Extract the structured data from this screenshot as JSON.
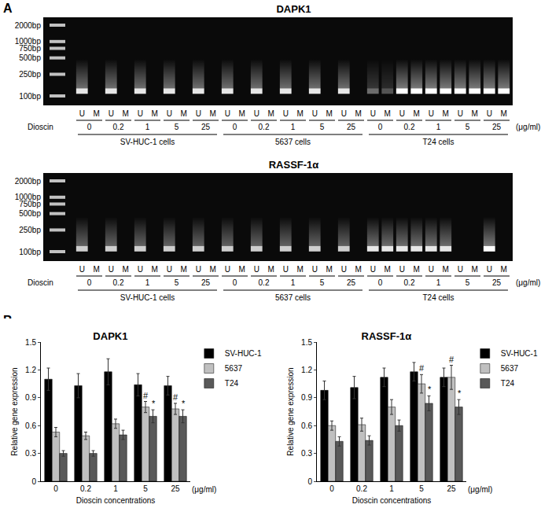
{
  "panel_a": {
    "label": "A",
    "row_label": "Dioscin",
    "lane_labels": [
      "U",
      "M"
    ],
    "concentrations": [
      "0",
      "0.2",
      "1",
      "5",
      "25"
    ],
    "unit": "(μg/ml)",
    "cell_lines": [
      "SV-HUC-1 cells",
      "5637 cells",
      "T24 cells"
    ],
    "ladder": [
      {
        "value": 2000,
        "label": "2000bp"
      },
      {
        "value": 1000,
        "label": "1000bp"
      },
      {
        "value": 750,
        "label": "750bp"
      },
      {
        "value": 500,
        "label": "500bp"
      },
      {
        "value": 250,
        "label": "250bp"
      },
      {
        "value": 100,
        "label": "100bp"
      }
    ],
    "gels": [
      {
        "title": "DAPK1",
        "band_bp": 125,
        "bands": [
          [
            [
              0.9,
              0
            ],
            [
              0.9,
              0
            ],
            [
              0.9,
              0
            ],
            [
              0.9,
              0
            ],
            [
              0.9,
              0
            ]
          ],
          [
            [
              0.9,
              0
            ],
            [
              0.9,
              0
            ],
            [
              0.9,
              0
            ],
            [
              0.9,
              0
            ],
            [
              0.9,
              0
            ]
          ],
          [
            [
              0.4,
              0.3
            ],
            [
              1,
              1
            ],
            [
              1,
              1
            ],
            [
              1,
              1
            ],
            [
              1,
              1
            ]
          ]
        ]
      },
      {
        "title": "RASSF-1α",
        "band_bp": 115,
        "bands": [
          [
            [
              0.8,
              0
            ],
            [
              0.8,
              0
            ],
            [
              0.8,
              0
            ],
            [
              0.8,
              0
            ],
            [
              0.8,
              0
            ]
          ],
          [
            [
              0.8,
              0
            ],
            [
              0.8,
              0
            ],
            [
              0.8,
              0
            ],
            [
              0.8,
              0
            ],
            [
              0.8,
              0
            ]
          ],
          [
            [
              0.9,
              0.9
            ],
            [
              0.9,
              0.9
            ],
            [
              0.9,
              0.9
            ],
            [
              0,
              0
            ],
            [
              1,
              0
            ]
          ]
        ]
      }
    ]
  },
  "panel_b": {
    "label": "B"
  },
  "chart_data": [
    {
      "type": "bar",
      "title": "DAPK1",
      "categories": [
        "0",
        "0.2",
        "1",
        "5",
        "25"
      ],
      "xlabel": "Dioscin concentrations",
      "unit_label": "(μg/ml)",
      "ylabel": "Relative gene expression",
      "ylim": [
        0,
        1.5
      ],
      "yticks": [
        0,
        0.3,
        0.6,
        0.9,
        1.2,
        1.5
      ],
      "grid": false,
      "legend": "top right",
      "series": [
        {
          "name": "SV-HUC-1",
          "color": "#000000",
          "values": [
            1.1,
            1.03,
            1.18,
            1.04,
            1.03
          ],
          "errors": [
            0.12,
            0.13,
            0.14,
            0.12,
            0.1
          ],
          "marks": [
            null,
            null,
            null,
            null,
            null
          ]
        },
        {
          "name": "5637",
          "color": "#c0c0c0",
          "values": [
            0.53,
            0.49,
            0.62,
            0.8,
            0.78
          ],
          "errors": [
            0.05,
            0.04,
            0.05,
            0.06,
            0.06
          ],
          "marks": [
            null,
            null,
            null,
            "#",
            "#"
          ]
        },
        {
          "name": "T24",
          "color": "#595959",
          "values": [
            0.3,
            0.3,
            0.5,
            0.7,
            0.7
          ],
          "errors": [
            0.03,
            0.03,
            0.05,
            0.07,
            0.07
          ],
          "marks": [
            null,
            null,
            null,
            "*",
            "*"
          ]
        }
      ]
    },
    {
      "type": "bar",
      "title": "RASSF-1α",
      "categories": [
        "0",
        "0.2",
        "1",
        "5",
        "25"
      ],
      "xlabel": "Dioscin concentrations",
      "unit_label": "(μg/ml)",
      "ylabel": "Relative gene expression",
      "ylim": [
        0,
        1.5
      ],
      "yticks": [
        0,
        0.3,
        0.6,
        0.9,
        1.2,
        1.5
      ],
      "grid": false,
      "legend": "top right",
      "series": [
        {
          "name": "SV-HUC-1",
          "color": "#000000",
          "values": [
            0.98,
            1.01,
            1.12,
            1.18,
            1.12
          ],
          "errors": [
            0.1,
            0.12,
            0.1,
            0.1,
            0.1
          ],
          "marks": [
            null,
            null,
            null,
            null,
            null
          ]
        },
        {
          "name": "5637",
          "color": "#c0c0c0",
          "values": [
            0.6,
            0.61,
            0.8,
            1.05,
            1.12
          ],
          "errors": [
            0.05,
            0.07,
            0.08,
            0.1,
            0.13
          ],
          "marks": [
            null,
            null,
            null,
            "#",
            "#"
          ]
        },
        {
          "name": "T24",
          "color": "#595959",
          "values": [
            0.43,
            0.44,
            0.6,
            0.84,
            0.8
          ],
          "errors": [
            0.05,
            0.05,
            0.06,
            0.08,
            0.08
          ],
          "marks": [
            null,
            null,
            null,
            "*",
            "*"
          ]
        }
      ]
    }
  ]
}
